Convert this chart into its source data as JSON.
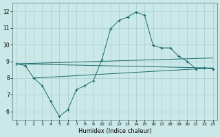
{
  "background_color": "#cbe8e8",
  "grid_color": "#a8cccc",
  "line_color": "#1a6b6b",
  "xlabel": "Humidex (Indice chaleur)",
  "xlim": [
    -0.5,
    23.5
  ],
  "ylim": [
    5.5,
    12.5
  ],
  "yticks": [
    6,
    7,
    8,
    9,
    10,
    11,
    12
  ],
  "xticks": [
    0,
    1,
    2,
    3,
    4,
    5,
    6,
    7,
    8,
    9,
    10,
    11,
    12,
    13,
    14,
    15,
    16,
    17,
    18,
    19,
    20,
    21,
    22,
    23
  ],
  "line1_x": [
    0,
    1,
    2,
    3,
    4,
    5,
    6,
    7,
    8,
    9,
    10,
    11,
    12,
    13,
    14,
    15,
    16,
    17,
    18,
    19,
    20,
    21,
    22,
    23
  ],
  "line1_y": [
    8.85,
    8.75,
    8.0,
    7.55,
    6.6,
    5.7,
    6.1,
    7.3,
    7.55,
    7.85,
    9.1,
    10.95,
    11.45,
    11.65,
    11.95,
    11.75,
    9.95,
    9.8,
    9.8,
    9.3,
    9.0,
    8.55,
    8.6,
    8.55
  ],
  "line2_x": [
    0,
    23
  ],
  "line2_y": [
    8.85,
    8.6
  ],
  "line3_x": [
    0,
    23
  ],
  "line3_y": [
    8.85,
    9.2
  ],
  "line4_x": [
    2,
    23
  ],
  "line4_y": [
    8.0,
    8.6
  ]
}
